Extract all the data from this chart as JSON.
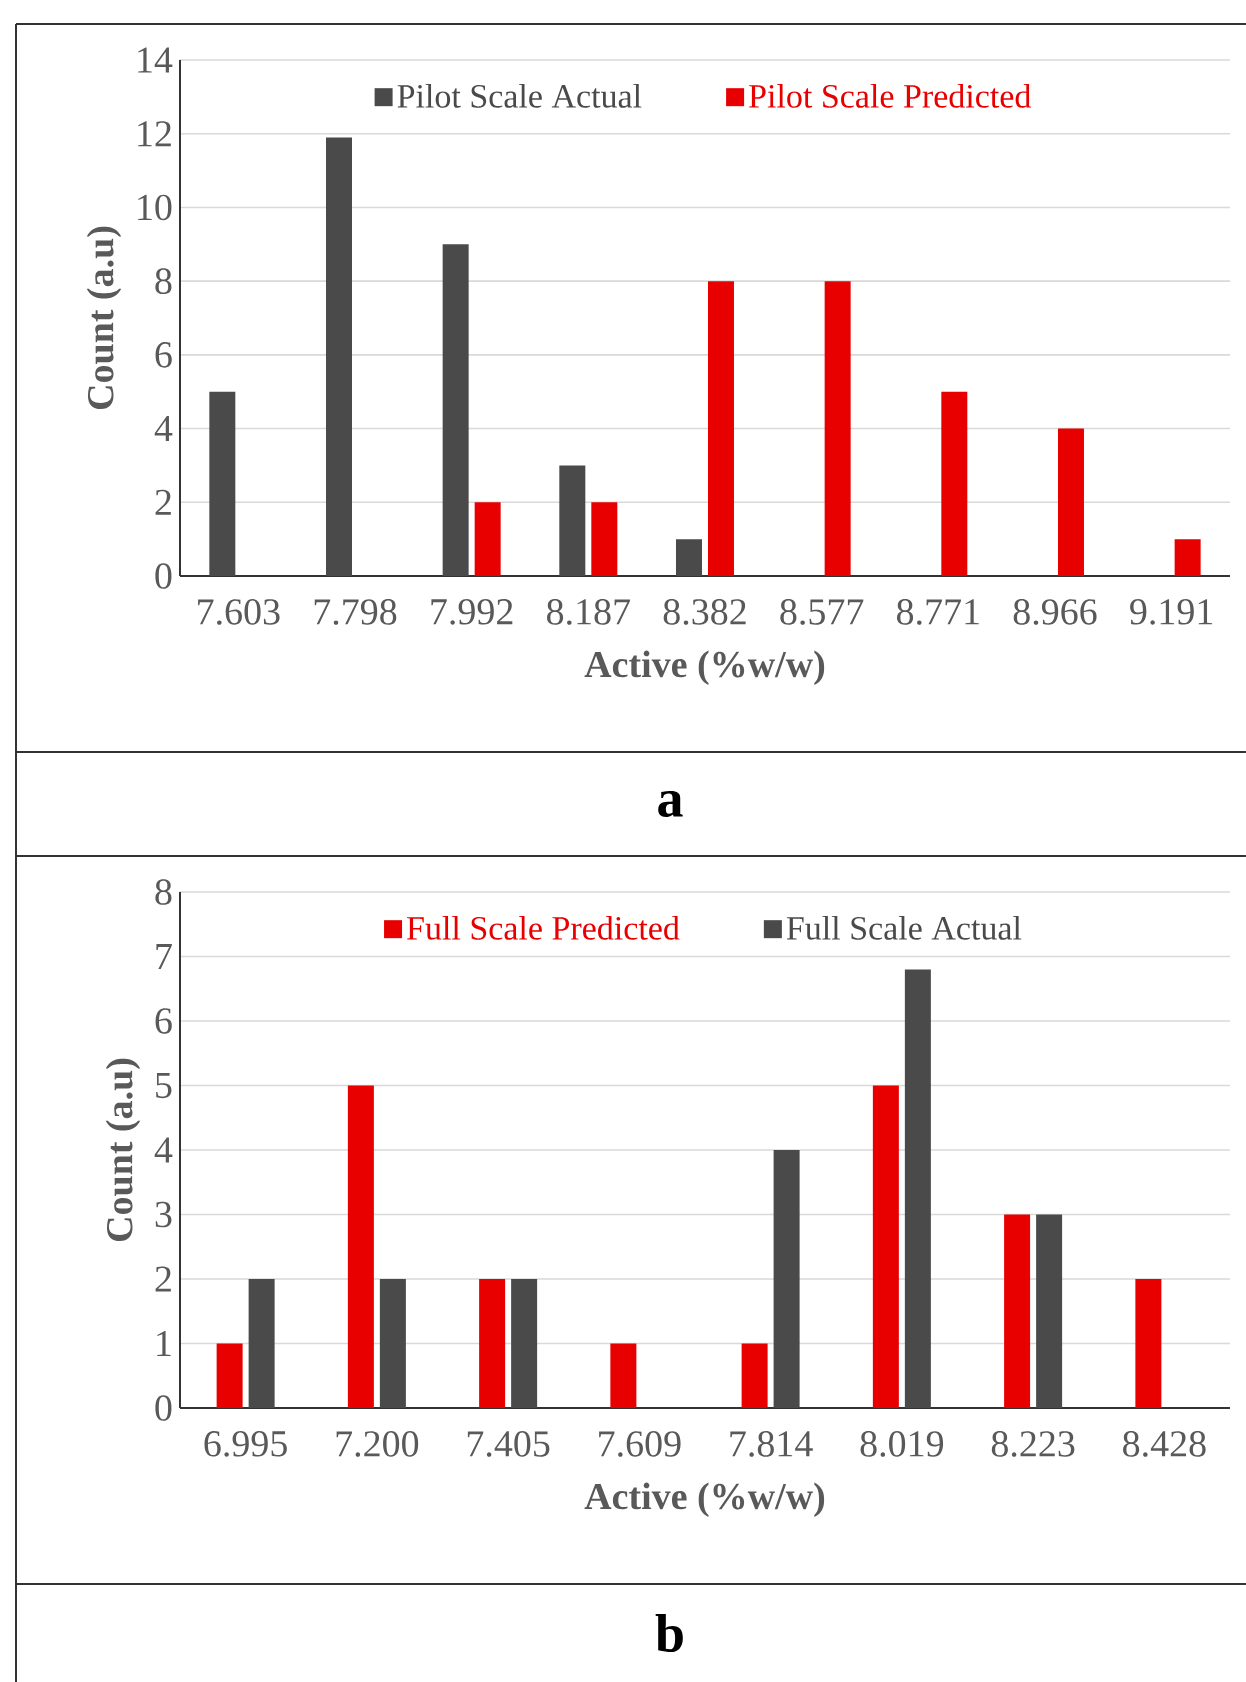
{
  "chart_data": [
    {
      "type": "bar",
      "xlabel": "Active (%w/w)",
      "ylabel": "Count (a.u)",
      "annotations": [
        "a"
      ],
      "categories": [
        "7.603",
        "7.798",
        "7.992",
        "8.187",
        "8.382",
        "8.577",
        "8.771",
        "8.966",
        "9.191"
      ],
      "series": [
        {
          "name": "Pilot Scale Actual",
          "color": "#4a4a4a",
          "values": [
            5,
            11.9,
            9,
            3,
            1,
            null,
            null,
            null,
            null
          ]
        },
        {
          "name": "Pilot Scale Predicted",
          "color": "#e80000",
          "values": [
            null,
            null,
            2,
            2,
            8,
            8,
            5,
            4,
            1
          ]
        }
      ],
      "ylim": [
        0,
        14
      ],
      "yticks": [
        0,
        2,
        4,
        6,
        8,
        10,
        12,
        14
      ],
      "grid": "y",
      "legend": "top"
    },
    {
      "type": "bar",
      "xlabel": "Active (%w/w)",
      "ylabel": "Count (a.u)",
      "annotations": [
        "b"
      ],
      "categories": [
        "6.995",
        "7.200",
        "7.405",
        "7.609",
        "7.814",
        "8.019",
        "8.223",
        "8.428"
      ],
      "series": [
        {
          "name": "Full Scale Predicted",
          "color": "#e80000",
          "values": [
            1,
            5,
            2,
            1,
            1,
            5,
            3,
            2
          ]
        },
        {
          "name": "Full Scale Actual",
          "color": "#4a4a4a",
          "values": [
            2,
            2,
            2,
            null,
            4,
            6.8,
            3,
            null
          ]
        }
      ],
      "ylim": [
        0,
        8
      ],
      "yticks": [
        0,
        1,
        2,
        3,
        4,
        5,
        6,
        7,
        8
      ],
      "grid": "y",
      "legend": "top"
    }
  ]
}
